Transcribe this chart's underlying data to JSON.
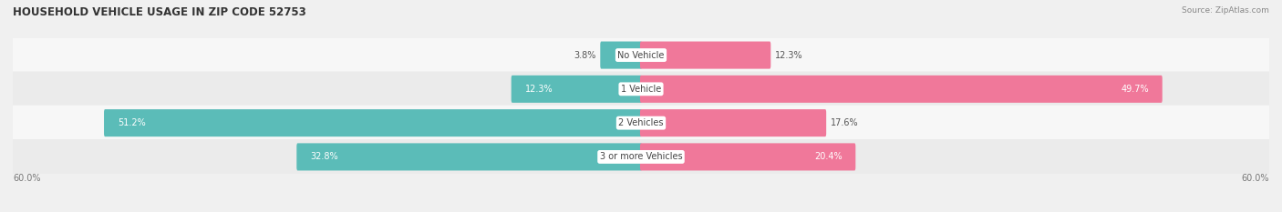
{
  "title": "HOUSEHOLD VEHICLE USAGE IN ZIP CODE 52753",
  "source": "Source: ZipAtlas.com",
  "categories": [
    "No Vehicle",
    "1 Vehicle",
    "2 Vehicles",
    "3 or more Vehicles"
  ],
  "owner_values": [
    3.8,
    12.3,
    51.2,
    32.8
  ],
  "renter_values": [
    12.3,
    49.7,
    17.6,
    20.4
  ],
  "owner_color": "#5bbcb8",
  "renter_color": "#f0789a",
  "axis_max": 60.0,
  "axis_label": "60.0%",
  "bar_height": 0.62,
  "bg_color": "#f0f0f0",
  "row_bg_light": "#f7f7f7",
  "row_bg_dark": "#ebebeb",
  "title_fontsize": 8.5,
  "source_fontsize": 6.5,
  "label_fontsize": 7.0,
  "category_fontsize": 7.0
}
